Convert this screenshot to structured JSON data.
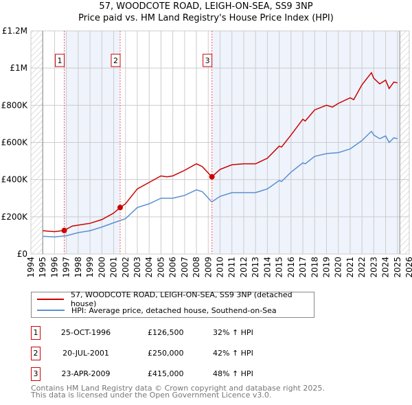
{
  "title": "57, WOODCOTE ROAD, LEIGH-ON-SEA, SS9 3NP",
  "subtitle": "Price paid vs. HM Land Registry's House Price Index (HPI)",
  "colors": {
    "property": "#cc0000",
    "hpi": "#5b8fd0",
    "shade": "#eef3fc"
  },
  "chart_data": {
    "type": "line",
    "xlim": [
      1994,
      2026
    ],
    "ylim": [
      0,
      1200000
    ],
    "x_ticks": [
      "1994",
      "1995",
      "1996",
      "1997",
      "1998",
      "1999",
      "2000",
      "2001",
      "2002",
      "2003",
      "2004",
      "2005",
      "2006",
      "2007",
      "2008",
      "2009",
      "2010",
      "2011",
      "2012",
      "2013",
      "2014",
      "2015",
      "2016",
      "2017",
      "2018",
      "2019",
      "2020",
      "2021",
      "2022",
      "2023",
      "2024",
      "2025",
      "2026"
    ],
    "y_ticks": [
      {
        "v": 0,
        "label": "£0"
      },
      {
        "v": 200000,
        "label": "£200K"
      },
      {
        "v": 400000,
        "label": "£400K"
      },
      {
        "v": 600000,
        "label": "£600K"
      },
      {
        "v": 800000,
        "label": "£800K"
      },
      {
        "v": 1000000,
        "label": "£1M"
      },
      {
        "v": 1200000,
        "label": "£1.2M"
      }
    ],
    "series": [
      {
        "name": "57, WOODCOTE ROAD, LEIGH-ON-SEA, SS9 3NP (detached house)",
        "x": [
          1995,
          1996,
          1996.8,
          1997.5,
          1998,
          1999,
          2000,
          2001,
          2001.55,
          2002,
          2003,
          2004,
          2005,
          2005.5,
          2006,
          2007,
          2008,
          2008.5,
          2009.3,
          2010,
          2011,
          2012,
          2013,
          2014,
          2015,
          2015.2,
          2016,
          2017,
          2017.2,
          2018,
          2019,
          2019.5,
          2020,
          2021,
          2021.3,
          2022,
          2022.8,
          2023,
          2023.5,
          2024,
          2024.3,
          2024.7,
          2025
        ],
        "y": [
          125000,
          120000,
          126500,
          150000,
          155000,
          165000,
          185000,
          220000,
          250000,
          270000,
          350000,
          385000,
          420000,
          415000,
          420000,
          450000,
          485000,
          470000,
          415000,
          455000,
          480000,
          485000,
          485000,
          515000,
          580000,
          575000,
          640000,
          725000,
          715000,
          775000,
          800000,
          790000,
          810000,
          840000,
          830000,
          910000,
          975000,
          945000,
          915000,
          935000,
          890000,
          925000,
          920000
        ]
      },
      {
        "name": "HPI: Average price, detached house, Southend-on-Sea",
        "x": [
          1995,
          1996,
          1997,
          1998,
          1999,
          2000,
          2001,
          2002,
          2003,
          2004,
          2005,
          2006,
          2007,
          2008,
          2008.5,
          2009.3,
          2010,
          2011,
          2012,
          2013,
          2014,
          2015,
          2015.2,
          2016,
          2017,
          2017.2,
          2018,
          2019,
          2020,
          2021,
          2022,
          2022.8,
          2023,
          2023.5,
          2024,
          2024.3,
          2024.7,
          2025
        ],
        "y": [
          95000,
          92000,
          98000,
          115000,
          125000,
          145000,
          168000,
          190000,
          250000,
          270000,
          300000,
          300000,
          315000,
          345000,
          335000,
          280000,
          310000,
          330000,
          330000,
          330000,
          350000,
          395000,
          390000,
          440000,
          490000,
          485000,
          525000,
          540000,
          545000,
          565000,
          610000,
          660000,
          640000,
          620000,
          635000,
          600000,
          625000,
          620000
        ]
      }
    ],
    "sales": [
      {
        "label": "1",
        "x": 1996.82,
        "y": 126500
      },
      {
        "label": "2",
        "x": 2001.55,
        "y": 250000
      },
      {
        "label": "3",
        "x": 2009.31,
        "y": 415000
      }
    ]
  },
  "legend": {
    "property": "57, WOODCOTE ROAD, LEIGH-ON-SEA, SS9 3NP (detached house)",
    "hpi": "HPI: Average price, detached house, Southend-on-Sea"
  },
  "transactions": [
    {
      "num": "1",
      "date": "25-OCT-1996",
      "price": "£126,500",
      "hpi": "32% ↑ HPI"
    },
    {
      "num": "2",
      "date": "20-JUL-2001",
      "price": "£250,000",
      "hpi": "42% ↑ HPI"
    },
    {
      "num": "3",
      "date": "23-APR-2009",
      "price": "£415,000",
      "hpi": "48% ↑ HPI"
    }
  ],
  "footer": {
    "line1": "Contains HM Land Registry data © Crown copyright and database right 2025.",
    "line2": "This data is licensed under the Open Government Licence v3.0."
  }
}
